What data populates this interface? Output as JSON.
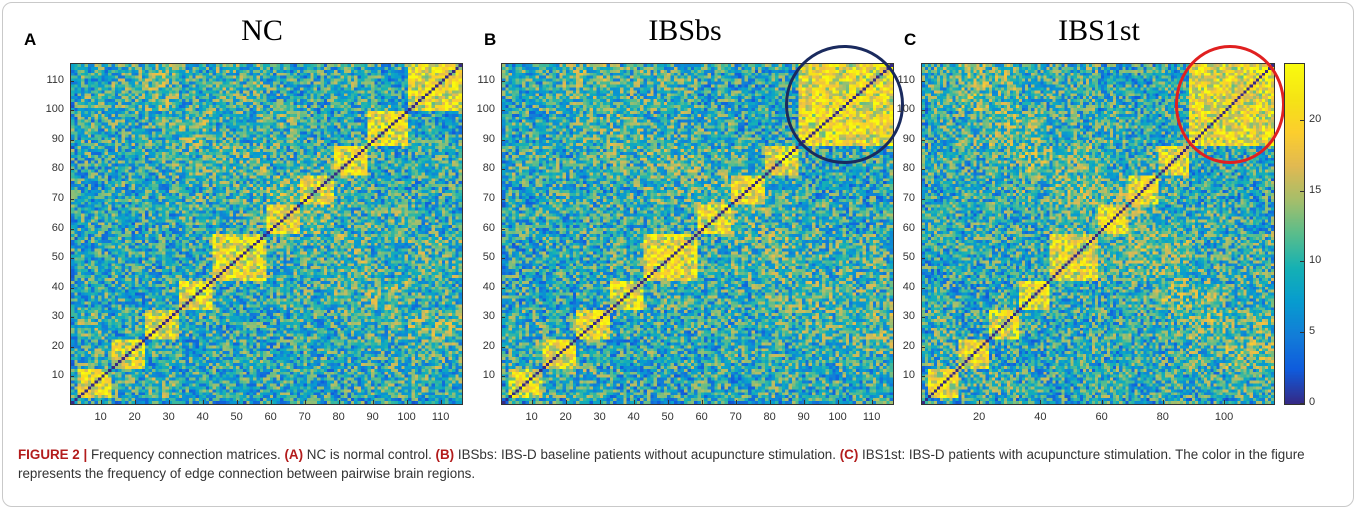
{
  "chart_data": [
    {
      "type": "heatmap",
      "panel": "A",
      "title": "NC",
      "matrix_size": 116,
      "x_ticks": [
        10,
        20,
        30,
        40,
        50,
        60,
        70,
        80,
        90,
        100,
        110
      ],
      "y_ticks": [
        10,
        20,
        30,
        40,
        50,
        60,
        70,
        80,
        90,
        100,
        110
      ],
      "xlim": [
        1,
        116
      ],
      "ylim": [
        1,
        116
      ],
      "value_range": [
        0,
        24
      ],
      "note": "Symmetric frequency matrix; diagonal near 0 (dark blue)"
    },
    {
      "type": "heatmap",
      "panel": "B",
      "title": "IBSbs",
      "matrix_size": 116,
      "x_ticks": [
        10,
        20,
        30,
        40,
        50,
        60,
        70,
        80,
        90,
        100,
        110
      ],
      "y_ticks": [
        10,
        20,
        30,
        40,
        50,
        60,
        70,
        80,
        90,
        100,
        110
      ],
      "xlim": [
        1,
        116
      ],
      "ylim": [
        1,
        116
      ],
      "value_range": [
        0,
        24
      ],
      "highlight": {
        "shape": "circle",
        "color": "#1a2a5e",
        "region_x": [
          88,
          116
        ],
        "region_y": [
          88,
          116
        ]
      }
    },
    {
      "type": "heatmap",
      "panel": "C",
      "title": "IBS1st",
      "matrix_size": 116,
      "x_ticks": [
        20,
        40,
        60,
        80,
        100
      ],
      "y_ticks": [
        10,
        20,
        30,
        40,
        50,
        60,
        70,
        80,
        90,
        100,
        110
      ],
      "xlim": [
        1,
        116
      ],
      "ylim": [
        1,
        116
      ],
      "value_range": [
        0,
        24
      ],
      "highlight": {
        "shape": "circle",
        "color": "#e02020",
        "region_x": [
          88,
          116
        ],
        "region_y": [
          88,
          116
        ]
      },
      "colorbar": {
        "ticks": [
          0,
          5,
          10,
          15,
          20
        ],
        "range": [
          0,
          24
        ],
        "colormap": "parula"
      }
    }
  ],
  "caption": {
    "label": "FIGURE 2 |",
    "intro": " Frequency connection matrices. ",
    "a_label": "(A)",
    "a_text": " NC is normal control. ",
    "b_label": "(B)",
    "b_text": " IBSbs: IBS-D baseline patients without acupuncture stimulation. ",
    "c_label": "(C)",
    "c_text": " IBS1st: IBS-D patients with acupuncture stimulation. The color in the figure represents the frequency of edge connection between pairwise brain regions."
  }
}
